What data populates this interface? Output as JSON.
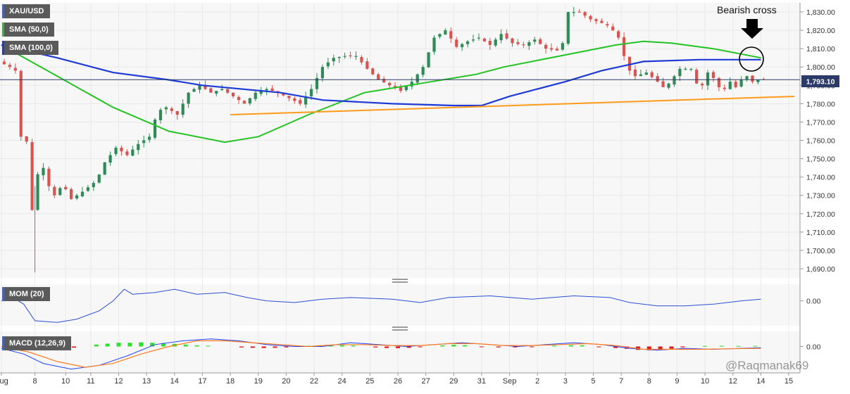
{
  "chart_data": {
    "type": "candlestick",
    "symbol_label": "XAU/USD",
    "indicator_labels": [
      "SMA (50,0)",
      "SMA (100,0)"
    ],
    "annotation": "Bearish cross",
    "last_price_label": "1,793.10",
    "last_price": 1793.1,
    "watermark": "@Raqmanak69",
    "price_ticks": [
      "1,830.00",
      "1,820.00",
      "1,810.00",
      "1,800.00",
      "1,790.00",
      "1,780.00",
      "1,770.00",
      "1,760.00",
      "1,750.00",
      "1,740.00",
      "1,730.00",
      "1,720.00",
      "1,710.00",
      "1,700.00",
      "1,690.00"
    ],
    "price_tick_values": [
      1830,
      1820,
      1810,
      1800,
      1790,
      1780,
      1770,
      1760,
      1750,
      1740,
      1730,
      1720,
      1710,
      1700,
      1690
    ],
    "ylim": [
      1685,
      1835
    ],
    "x_labels": [
      "Aug",
      "8",
      "10",
      "11",
      "12",
      "13",
      "14",
      "17",
      "18",
      "19",
      "20",
      "22",
      "24",
      "25",
      "26",
      "27",
      "29",
      "31",
      "Sep",
      "2",
      "3",
      "5",
      "7",
      "8",
      "9",
      "10",
      "12",
      "14",
      "15"
    ],
    "x_label_session": [
      0,
      12,
      23,
      32,
      42,
      52,
      62,
      72,
      82,
      92,
      102,
      112,
      122,
      132,
      142,
      152,
      162,
      172,
      182,
      192,
      202,
      212,
      222,
      232,
      242,
      252,
      262,
      272,
      282
    ],
    "sessions_total": 283,
    "close_series": [
      {
        "s": 0,
        "p": 1803
      },
      {
        "s": 4,
        "p": 1800
      },
      {
        "s": 7,
        "p": 1797
      },
      {
        "s": 8,
        "p": 1762
      },
      {
        "s": 11,
        "p": 1758
      },
      {
        "s": 12,
        "p": 1722
      },
      {
        "s": 13,
        "p": 1735
      },
      {
        "s": 15,
        "p": 1748
      },
      {
        "s": 17,
        "p": 1742
      },
      {
        "s": 19,
        "p": 1728
      },
      {
        "s": 23,
        "p": 1736
      },
      {
        "s": 26,
        "p": 1728
      },
      {
        "s": 30,
        "p": 1732
      },
      {
        "s": 35,
        "p": 1738
      },
      {
        "s": 38,
        "p": 1748
      },
      {
        "s": 42,
        "p": 1756
      },
      {
        "s": 46,
        "p": 1752
      },
      {
        "s": 50,
        "p": 1758
      },
      {
        "s": 54,
        "p": 1762
      },
      {
        "s": 57,
        "p": 1776
      },
      {
        "s": 60,
        "p": 1778
      },
      {
        "s": 64,
        "p": 1774
      },
      {
        "s": 68,
        "p": 1786
      },
      {
        "s": 72,
        "p": 1790
      },
      {
        "s": 76,
        "p": 1786
      },
      {
        "s": 80,
        "p": 1788
      },
      {
        "s": 84,
        "p": 1784
      },
      {
        "s": 88,
        "p": 1780
      },
      {
        "s": 92,
        "p": 1786
      },
      {
        "s": 96,
        "p": 1788
      },
      {
        "s": 100,
        "p": 1786
      },
      {
        "s": 104,
        "p": 1783
      },
      {
        "s": 108,
        "p": 1780
      },
      {
        "s": 112,
        "p": 1788
      },
      {
        "s": 116,
        "p": 1800
      },
      {
        "s": 120,
        "p": 1805
      },
      {
        "s": 124,
        "p": 1806
      },
      {
        "s": 128,
        "p": 1806
      },
      {
        "s": 132,
        "p": 1799
      },
      {
        "s": 136,
        "p": 1793
      },
      {
        "s": 140,
        "p": 1790
      },
      {
        "s": 144,
        "p": 1787
      },
      {
        "s": 148,
        "p": 1792
      },
      {
        "s": 152,
        "p": 1800
      },
      {
        "s": 156,
        "p": 1816
      },
      {
        "s": 160,
        "p": 1820
      },
      {
        "s": 164,
        "p": 1811
      },
      {
        "s": 168,
        "p": 1814
      },
      {
        "s": 172,
        "p": 1816
      },
      {
        "s": 176,
        "p": 1812
      },
      {
        "s": 180,
        "p": 1818
      },
      {
        "s": 184,
        "p": 1813
      },
      {
        "s": 188,
        "p": 1812
      },
      {
        "s": 192,
        "p": 1815
      },
      {
        "s": 196,
        "p": 1810
      },
      {
        "s": 200,
        "p": 1809
      },
      {
        "s": 202,
        "p": 1813
      },
      {
        "s": 204,
        "p": 1830
      },
      {
        "s": 208,
        "p": 1830
      },
      {
        "s": 212,
        "p": 1826
      },
      {
        "s": 216,
        "p": 1824
      },
      {
        "s": 219,
        "p": 1822
      },
      {
        "s": 222,
        "p": 1816
      },
      {
        "s": 224,
        "p": 1806
      },
      {
        "s": 226,
        "p": 1798
      },
      {
        "s": 228,
        "p": 1795
      },
      {
        "s": 232,
        "p": 1797
      },
      {
        "s": 236,
        "p": 1792
      },
      {
        "s": 238,
        "p": 1789
      },
      {
        "s": 240,
        "p": 1791
      },
      {
        "s": 244,
        "p": 1799
      },
      {
        "s": 248,
        "p": 1799
      },
      {
        "s": 250,
        "p": 1791
      },
      {
        "s": 252,
        "p": 1790
      },
      {
        "s": 254,
        "p": 1797
      },
      {
        "s": 256,
        "p": 1794
      },
      {
        "s": 258,
        "p": 1789
      },
      {
        "s": 260,
        "p": 1788
      },
      {
        "s": 262,
        "p": 1792
      },
      {
        "s": 264,
        "p": 1789
      },
      {
        "s": 266,
        "p": 1793
      },
      {
        "s": 268,
        "p": 1795
      },
      {
        "s": 270,
        "p": 1792
      },
      {
        "s": 272,
        "p": 1793.1
      }
    ],
    "sma50_series": [
      {
        "s": 0,
        "p": 1812
      },
      {
        "s": 20,
        "p": 1795
      },
      {
        "s": 40,
        "p": 1778
      },
      {
        "s": 60,
        "p": 1765
      },
      {
        "s": 80,
        "p": 1759
      },
      {
        "s": 92,
        "p": 1762
      },
      {
        "s": 110,
        "p": 1774
      },
      {
        "s": 130,
        "p": 1786
      },
      {
        "s": 150,
        "p": 1791
      },
      {
        "s": 170,
        "p": 1796
      },
      {
        "s": 180,
        "p": 1800
      },
      {
        "s": 200,
        "p": 1806
      },
      {
        "s": 220,
        "p": 1812
      },
      {
        "s": 230,
        "p": 1814
      },
      {
        "s": 240,
        "p": 1813
      },
      {
        "s": 255,
        "p": 1810
      },
      {
        "s": 272,
        "p": 1805
      }
    ],
    "sma100_series": [
      {
        "s": 0,
        "p": 1812
      },
      {
        "s": 20,
        "p": 1805
      },
      {
        "s": 40,
        "p": 1797
      },
      {
        "s": 60,
        "p": 1793
      },
      {
        "s": 72,
        "p": 1790
      },
      {
        "s": 100,
        "p": 1786
      },
      {
        "s": 115,
        "p": 1782
      },
      {
        "s": 140,
        "p": 1780
      },
      {
        "s": 162,
        "p": 1779
      },
      {
        "s": 172,
        "p": 1779
      },
      {
        "s": 182,
        "p": 1784
      },
      {
        "s": 202,
        "p": 1792
      },
      {
        "s": 215,
        "p": 1798
      },
      {
        "s": 230,
        "p": 1803
      },
      {
        "s": 250,
        "p": 1804
      },
      {
        "s": 272,
        "p": 1804
      }
    ],
    "trendline": {
      "from": {
        "s": 82,
        "p": 1774
      },
      "to": {
        "s": 284,
        "p": 1784
      }
    },
    "momentum": {
      "label": "MOM (20)",
      "tick_label": "0.00",
      "ylim": [
        -15,
        10
      ],
      "points": [
        {
          "s": 0,
          "v": 0
        },
        {
          "s": 5,
          "v": 1
        },
        {
          "s": 8,
          "v": -2
        },
        {
          "s": 12,
          "v": -12
        },
        {
          "s": 20,
          "v": -13
        },
        {
          "s": 27,
          "v": -11
        },
        {
          "s": 35,
          "v": -6
        },
        {
          "s": 40,
          "v": 0
        },
        {
          "s": 44,
          "v": 7
        },
        {
          "s": 47,
          "v": 4
        },
        {
          "s": 55,
          "v": 5
        },
        {
          "s": 62,
          "v": 7
        },
        {
          "s": 70,
          "v": 4
        },
        {
          "s": 80,
          "v": 5
        },
        {
          "s": 88,
          "v": 2
        },
        {
          "s": 95,
          "v": 0
        },
        {
          "s": 105,
          "v": -1
        },
        {
          "s": 115,
          "v": 1
        },
        {
          "s": 125,
          "v": 2
        },
        {
          "s": 140,
          "v": 1
        },
        {
          "s": 150,
          "v": -1
        },
        {
          "s": 160,
          "v": 2
        },
        {
          "s": 175,
          "v": 3
        },
        {
          "s": 190,
          "v": 1
        },
        {
          "s": 205,
          "v": 3
        },
        {
          "s": 218,
          "v": 2
        },
        {
          "s": 225,
          "v": -1
        },
        {
          "s": 235,
          "v": -3
        },
        {
          "s": 245,
          "v": -3
        },
        {
          "s": 255,
          "v": -2
        },
        {
          "s": 265,
          "v": 0
        },
        {
          "s": 272,
          "v": 1
        }
      ]
    },
    "macd": {
      "label": "MACD (12,26,9)",
      "tick_label": "0.00",
      "ylim": [
        -14,
        8
      ],
      "macd_line": [
        {
          "s": 0,
          "v": -1
        },
        {
          "s": 8,
          "v": -4
        },
        {
          "s": 15,
          "v": -9
        },
        {
          "s": 25,
          "v": -12
        },
        {
          "s": 35,
          "v": -10
        },
        {
          "s": 45,
          "v": -5
        },
        {
          "s": 55,
          "v": 1
        },
        {
          "s": 65,
          "v": 3
        },
        {
          "s": 75,
          "v": 4
        },
        {
          "s": 85,
          "v": 3
        },
        {
          "s": 95,
          "v": 1
        },
        {
          "s": 105,
          "v": 0
        },
        {
          "s": 115,
          "v": 0
        },
        {
          "s": 125,
          "v": 2
        },
        {
          "s": 135,
          "v": 1
        },
        {
          "s": 145,
          "v": 0
        },
        {
          "s": 155,
          "v": 1
        },
        {
          "s": 165,
          "v": 2
        },
        {
          "s": 175,
          "v": 1
        },
        {
          "s": 185,
          "v": 0
        },
        {
          "s": 195,
          "v": 1
        },
        {
          "s": 205,
          "v": 2
        },
        {
          "s": 215,
          "v": 1
        },
        {
          "s": 225,
          "v": -1
        },
        {
          "s": 235,
          "v": -2
        },
        {
          "s": 245,
          "v": -1
        },
        {
          "s": 255,
          "v": -1.5
        },
        {
          "s": 265,
          "v": -1
        },
        {
          "s": 272,
          "v": -0.7
        }
      ],
      "signal_line": [
        {
          "s": 0,
          "v": 0
        },
        {
          "s": 10,
          "v": -3
        },
        {
          "s": 20,
          "v": -8
        },
        {
          "s": 30,
          "v": -11
        },
        {
          "s": 40,
          "v": -9
        },
        {
          "s": 50,
          "v": -4
        },
        {
          "s": 60,
          "v": 0
        },
        {
          "s": 70,
          "v": 3
        },
        {
          "s": 80,
          "v": 3
        },
        {
          "s": 90,
          "v": 2
        },
        {
          "s": 100,
          "v": 1
        },
        {
          "s": 110,
          "v": 0
        },
        {
          "s": 120,
          "v": 1
        },
        {
          "s": 130,
          "v": 1
        },
        {
          "s": 140,
          "v": 0.5
        },
        {
          "s": 150,
          "v": 0.5
        },
        {
          "s": 160,
          "v": 1.5
        },
        {
          "s": 170,
          "v": 1.5
        },
        {
          "s": 180,
          "v": 0.5
        },
        {
          "s": 190,
          "v": 0.5
        },
        {
          "s": 200,
          "v": 1
        },
        {
          "s": 210,
          "v": 1.5
        },
        {
          "s": 220,
          "v": 0.5
        },
        {
          "s": 230,
          "v": -1.5
        },
        {
          "s": 240,
          "v": -1.5
        },
        {
          "s": 250,
          "v": -1.5
        },
        {
          "s": 260,
          "v": -1.2
        },
        {
          "s": 272,
          "v": -1
        }
      ],
      "histogram": [
        {
          "s": 2,
          "v": -1
        },
        {
          "s": 6,
          "v": -1.5
        },
        {
          "s": 10,
          "v": -2
        },
        {
          "s": 14,
          "v": -2
        },
        {
          "s": 18,
          "v": -1.5
        },
        {
          "s": 22,
          "v": -1
        },
        {
          "s": 26,
          "v": -0.6
        },
        {
          "s": 34,
          "v": 1
        },
        {
          "s": 38,
          "v": 1.5
        },
        {
          "s": 42,
          "v": 2
        },
        {
          "s": 46,
          "v": 2
        },
        {
          "s": 50,
          "v": 2.2
        },
        {
          "s": 54,
          "v": 2
        },
        {
          "s": 58,
          "v": 1.8
        },
        {
          "s": 62,
          "v": 1.4
        },
        {
          "s": 66,
          "v": 1
        },
        {
          "s": 70,
          "v": 0.6
        },
        {
          "s": 74,
          "v": 0.4
        },
        {
          "s": 86,
          "v": -0.5
        },
        {
          "s": 90,
          "v": -0.7
        },
        {
          "s": 94,
          "v": -0.8
        },
        {
          "s": 98,
          "v": -0.7
        },
        {
          "s": 102,
          "v": -0.5
        },
        {
          "s": 110,
          "v": 0.4
        },
        {
          "s": 114,
          "v": 0.6
        },
        {
          "s": 118,
          "v": 0.8
        },
        {
          "s": 122,
          "v": 0.7
        },
        {
          "s": 126,
          "v": 0.5
        },
        {
          "s": 134,
          "v": -0.5
        },
        {
          "s": 138,
          "v": -0.8
        },
        {
          "s": 142,
          "v": -0.9
        },
        {
          "s": 146,
          "v": -0.7
        },
        {
          "s": 150,
          "v": -0.4
        },
        {
          "s": 158,
          "v": 0.6
        },
        {
          "s": 162,
          "v": 0.9
        },
        {
          "s": 166,
          "v": 0.7
        },
        {
          "s": 172,
          "v": -0.3
        },
        {
          "s": 178,
          "v": -0.5
        },
        {
          "s": 184,
          "v": -0.5
        },
        {
          "s": 190,
          "v": -0.4
        },
        {
          "s": 198,
          "v": 0.4
        },
        {
          "s": 204,
          "v": 0.7
        },
        {
          "s": 208,
          "v": 0.6
        },
        {
          "s": 214,
          "v": -0.4
        },
        {
          "s": 220,
          "v": -0.8
        },
        {
          "s": 224,
          "v": -1.2
        },
        {
          "s": 228,
          "v": -1.8
        },
        {
          "s": 232,
          "v": -2
        },
        {
          "s": 236,
          "v": -1.8
        },
        {
          "s": 240,
          "v": -1.2
        },
        {
          "s": 244,
          "v": -0.5
        },
        {
          "s": 252,
          "v": 0.3
        },
        {
          "s": 258,
          "v": 0.4
        },
        {
          "s": 264,
          "v": 0.3
        },
        {
          "s": 270,
          "v": 0.3
        }
      ]
    },
    "colors": {
      "up": "#2e8b57",
      "down": "#d9534f",
      "sma50": "#22c322",
      "sma100": "#1e3bd6",
      "trendline": "#ff9a1a",
      "price_line": "#2b3a67",
      "indicator_line": "#2b4fd6",
      "macd": "#1e40ff",
      "signal": "#ff7a1a",
      "hist_pos": "#2fe02f",
      "hist_neg": "#e01818",
      "grid": "#e9e9e9",
      "panel_bg": "#f7f7f7",
      "axis_text": "#333333"
    }
  }
}
